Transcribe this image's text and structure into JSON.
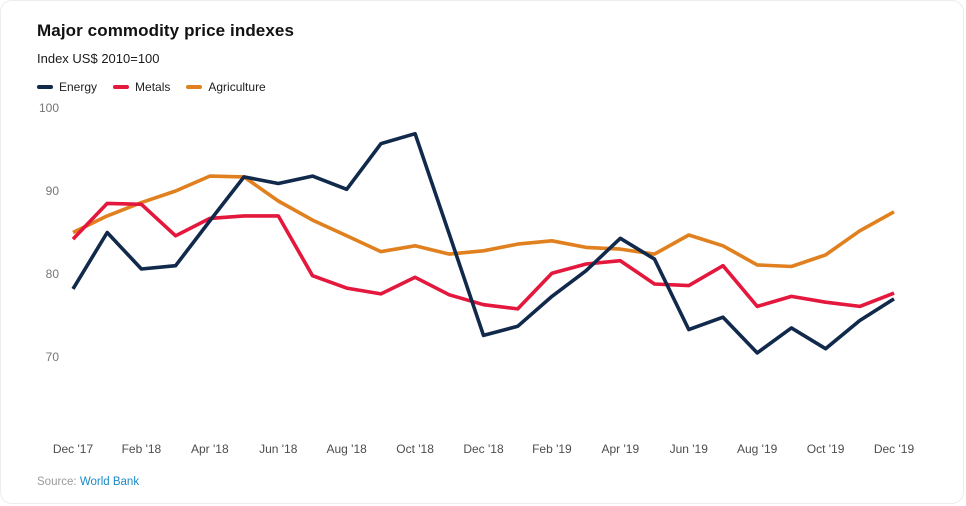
{
  "card": {
    "title": "Major commodity price indexes",
    "subtitle": "Index US$ 2010=100",
    "source_label": "Source:",
    "source_link": "World Bank"
  },
  "colors": {
    "energy": "#11294b",
    "metals": "#e4173c",
    "agriculture": "#e0801e",
    "y_tick_text": "#767676",
    "x_tick_text": "#4d4d4d",
    "source_text": "#9a9a9a",
    "link_text": "#1b8ac6",
    "background": "#ffffff"
  },
  "chart_data": {
    "type": "line",
    "title": "Major commodity price indexes",
    "subtitle": "Index US$ 2010=100",
    "x": [
      "Dec '17",
      "Jan '18",
      "Feb '18",
      "Mar '18",
      "Apr '18",
      "May '18",
      "Jun '18",
      "Jul '18",
      "Aug '18",
      "Sep '18",
      "Oct '18",
      "Nov '18",
      "Dec '18",
      "Jan '19",
      "Feb '19",
      "Mar '19",
      "Apr '19",
      "May '19",
      "Jun '19",
      "Jul '19",
      "Aug '19",
      "Sep '19",
      "Oct '19",
      "Nov '19",
      "Dec '19"
    ],
    "x_tick_labels": [
      "Dec '17",
      "Feb '18",
      "Apr '18",
      "Jun '18",
      "Aug '18",
      "Oct '18",
      "Dec '18",
      "Feb '19",
      "Apr '19",
      "Jun '19",
      "Aug '19",
      "Oct '19",
      "Dec '19"
    ],
    "y_ticks": [
      100,
      90,
      80,
      70
    ],
    "ylim": [
      70,
      100
    ],
    "grid": false,
    "legend_position": "top-left",
    "series": [
      {
        "name": "Energy",
        "color_key": "energy",
        "values": [
          78.2,
          85.0,
          80.6,
          81.0,
          86.4,
          91.7,
          90.9,
          91.8,
          90.2,
          95.7,
          96.9,
          84.8,
          72.6,
          73.7,
          77.3,
          80.4,
          84.3,
          81.8,
          73.3,
          74.8,
          70.5,
          73.5,
          71.0,
          74.4,
          77.0
        ]
      },
      {
        "name": "Metals",
        "color_key": "metals",
        "values": [
          84.2,
          88.5,
          88.4,
          84.6,
          86.7,
          87.0,
          87.0,
          79.8,
          78.3,
          77.6,
          79.6,
          77.5,
          76.3,
          75.8,
          80.1,
          81.2,
          81.6,
          78.8,
          78.6,
          81.0,
          76.1,
          77.3,
          76.6,
          76.1,
          77.7
        ]
      },
      {
        "name": "Agriculture",
        "color_key": "agriculture",
        "values": [
          85.0,
          87.0,
          88.6,
          90.0,
          91.8,
          91.7,
          88.8,
          86.5,
          84.6,
          82.7,
          83.4,
          82.4,
          82.8,
          83.6,
          84.0,
          83.2,
          83.0,
          82.4,
          84.7,
          83.4,
          81.1,
          80.9,
          82.3,
          85.2,
          87.5
        ]
      }
    ]
  }
}
